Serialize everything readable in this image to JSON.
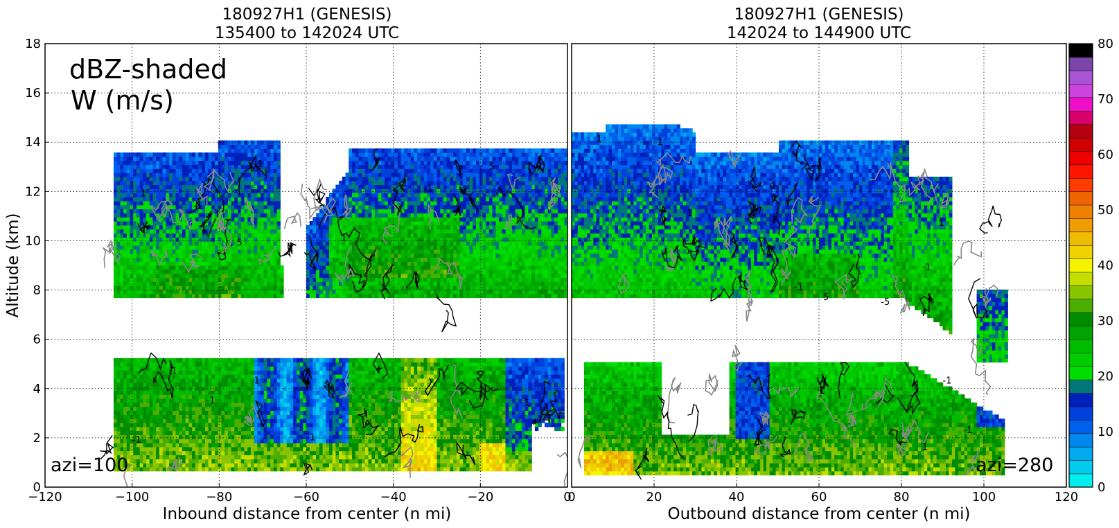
{
  "chart_data": [
    {
      "type": "heatmap",
      "title": "180927H1 (GENESIS)",
      "subtitle": "135400 to 142024 UTC",
      "xlabel": "Inbound distance from center (n mi)",
      "ylabel": "Altitude (km)",
      "xlim": [
        -120,
        0
      ],
      "ylim": [
        0,
        18
      ],
      "xticks": [
        "−120",
        "−100",
        "−80",
        "−60",
        "−40",
        "−20",
        "0"
      ],
      "yticks": [
        "0",
        "2",
        "4",
        "6",
        "8",
        "10",
        "12",
        "14",
        "16",
        "18"
      ],
      "grid": true,
      "annotation": "azi=100",
      "legend_text": [
        "dBZ-shaded",
        "W (m/s)"
      ],
      "contour_labels": [
        "1",
        "-1",
        "5",
        "-1",
        "1",
        "-1",
        "5",
        "1",
        "-1",
        "1",
        "-1",
        "-1",
        "1"
      ],
      "echo_layers": [
        {
          "name": "upper",
          "x_range": [
            -104,
            0
          ],
          "alt_range": [
            7.7,
            14.3
          ]
        },
        {
          "name": "lower",
          "x_range": [
            -104,
            0
          ],
          "alt_range": [
            0.6,
            5.2
          ]
        }
      ]
    },
    {
      "type": "heatmap",
      "title": "180927H1 (GENESIS)",
      "subtitle": "142024 to 144900 UTC",
      "xlabel": "Outbound distance from center (n mi)",
      "ylabel": "",
      "xlim": [
        0,
        120
      ],
      "ylim": [
        0,
        18
      ],
      "xticks": [
        "0",
        "20",
        "40",
        "60",
        "80",
        "100",
        "120"
      ],
      "grid": true,
      "annotation": "azi=280",
      "contour_labels": [
        "1",
        "-1",
        "1",
        "0",
        "-1",
        "5",
        "-5",
        "-1",
        "1",
        "1",
        "-1",
        "1",
        "-1",
        "1"
      ],
      "echo_layers": [
        {
          "name": "upper",
          "x_range": [
            0,
            106
          ],
          "alt_range": [
            5.0,
            14.8
          ]
        },
        {
          "name": "lower",
          "x_range": [
            3,
            105
          ],
          "alt_range": [
            0.5,
            5.3
          ]
        }
      ]
    }
  ],
  "colorbar": {
    "min": 0,
    "max": 80,
    "step": 2.5,
    "tick_labels": [
      "0",
      "10",
      "20",
      "30",
      "40",
      "50",
      "60",
      "70",
      "80"
    ],
    "colors": [
      "#00eeee",
      "#00ccee",
      "#00aaee",
      "#0088ee",
      "#0060ee",
      "#0040dd",
      "#0020bb",
      "#00787a",
      "#00dd00",
      "#00cc00",
      "#00bb00",
      "#00a400",
      "#008c00",
      "#4cae00",
      "#88c400",
      "#c4de00",
      "#f4f400",
      "#f0d200",
      "#eebc00",
      "#ee9e00",
      "#ee8200",
      "#ee6400",
      "#ff3c00",
      "#ff1400",
      "#ee0000",
      "#d00000",
      "#b40010",
      "#d8006a",
      "#ee10c8",
      "#cc44dd",
      "#a855d4",
      "#7a44a8",
      "#000000"
    ]
  }
}
